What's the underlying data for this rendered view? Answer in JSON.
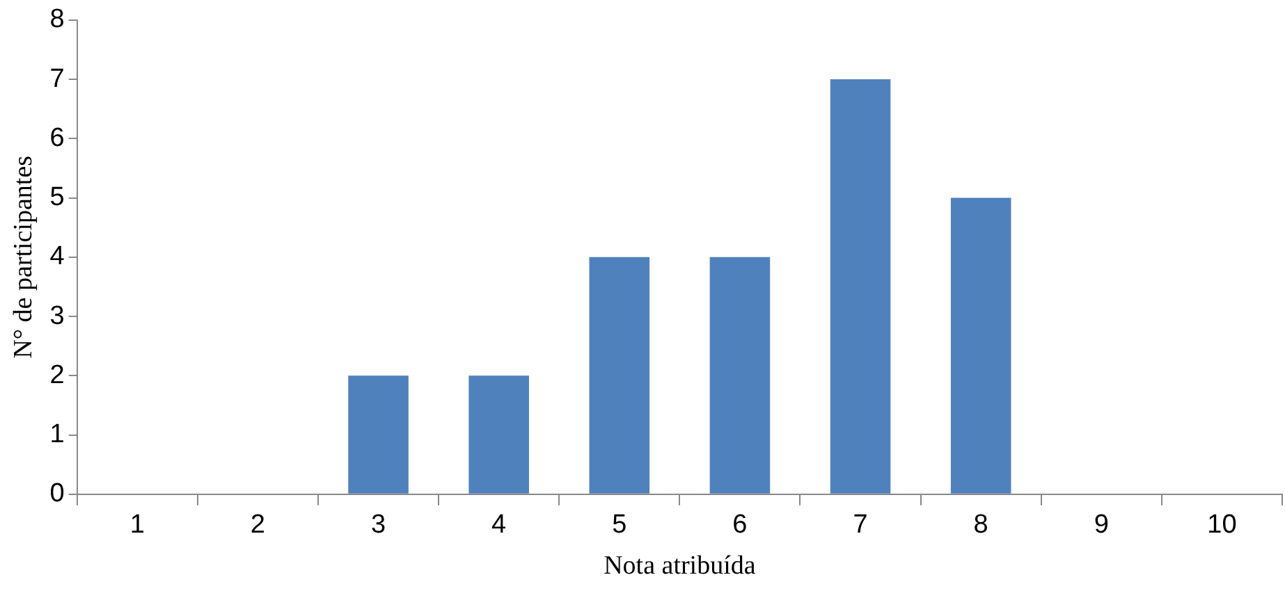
{
  "chart_data": {
    "type": "bar",
    "xlabel": "Nota atribuída",
    "ylabel": "N° de participantes",
    "categories": [
      "1",
      "2",
      "3",
      "4",
      "5",
      "6",
      "7",
      "8",
      "9",
      "10"
    ],
    "values": [
      0,
      0,
      2,
      2,
      4,
      4,
      7,
      5,
      0,
      0
    ],
    "color": "#4f81bd",
    "ylim": [
      0,
      8
    ],
    "yticks": [
      0,
      1,
      2,
      3,
      4,
      5,
      6,
      7,
      8
    ],
    "grid": false,
    "legend": false
  }
}
